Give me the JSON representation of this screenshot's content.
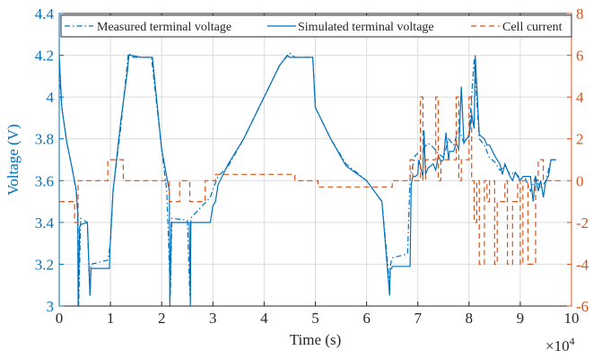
{
  "chart_data": {
    "type": "line",
    "xlabel": "Time (s)",
    "x_exponent_label": "×10",
    "x_exponent": "4",
    "ylabel_left": "Voltage (V)",
    "ylabel_right": "",
    "xlim": [
      0,
      10
    ],
    "ylim_left": [
      3,
      4.4
    ],
    "ylim_right": [
      -6,
      8
    ],
    "x_ticks": [
      0,
      1,
      2,
      3,
      4,
      5,
      6,
      7,
      8,
      9,
      10
    ],
    "y_left_ticks": [
      3,
      3.2,
      3.4,
      3.6,
      3.8,
      4,
      4.2,
      4.4
    ],
    "y_right_ticks": [
      -6,
      -4,
      -2,
      0,
      2,
      4,
      6,
      8
    ],
    "grid": true,
    "legend_location": "top",
    "colors": {
      "voltage": "#0072BD",
      "current": "#D95319"
    },
    "series": [
      {
        "name": "Measured terminal voltage",
        "axis": "left",
        "style": "dashdot",
        "color": "#0072BD",
        "x": [
          0,
          0.05,
          0.15,
          0.25,
          0.33,
          0.37,
          0.38,
          0.42,
          0.55,
          0.6,
          0.62,
          0.95,
          1.0,
          1.05,
          1.2,
          1.35,
          1.45,
          1.6,
          1.8,
          2.0,
          2.1,
          2.17,
          2.2,
          2.5,
          2.55,
          2.57,
          2.6,
          2.95,
          3.0,
          3.1,
          3.3,
          3.6,
          4.0,
          4.3,
          4.5,
          4.6,
          4.95,
          5.0,
          5.3,
          5.6,
          6.0,
          6.3,
          6.45,
          6.47,
          6.5,
          6.8,
          6.85,
          6.95,
          7.05,
          7.1,
          7.2,
          7.3,
          7.4,
          7.5,
          7.6,
          7.7,
          7.8,
          7.9,
          8.0,
          8.1,
          8.2,
          8.3,
          8.4,
          8.5,
          8.6,
          8.7,
          8.8,
          8.9,
          9.0,
          9.1,
          9.2,
          9.3,
          9.4,
          9.5,
          9.6,
          9.7
        ],
        "y": [
          4.12,
          3.95,
          3.78,
          3.66,
          3.55,
          3.4,
          3.0,
          3.42,
          3.4,
          3.05,
          3.2,
          3.22,
          3.3,
          3.55,
          3.85,
          4.21,
          4.19,
          4.19,
          4.19,
          3.75,
          3.55,
          3.05,
          3.42,
          3.41,
          3.05,
          3.42,
          3.43,
          3.52,
          3.56,
          3.62,
          3.67,
          3.8,
          4.0,
          4.15,
          4.21,
          4.19,
          4.19,
          3.95,
          3.8,
          3.68,
          3.6,
          3.5,
          3.1,
          3.2,
          3.23,
          3.25,
          3.62,
          3.72,
          3.74,
          3.75,
          3.78,
          3.76,
          3.73,
          3.71,
          3.8,
          3.77,
          3.85,
          3.78,
          3.82,
          4.18,
          3.8,
          3.77,
          3.71,
          3.69,
          3.65,
          3.67,
          3.63,
          3.64,
          3.61,
          3.61,
          3.55,
          3.62,
          3.56,
          3.6,
          3.7,
          3.7
        ]
      },
      {
        "name": "Simulated terminal voltage",
        "axis": "left",
        "style": "solid",
        "color": "#0072BD",
        "x": [
          0,
          0.05,
          0.15,
          0.25,
          0.33,
          0.36,
          0.37,
          0.4,
          0.42,
          0.55,
          0.6,
          0.62,
          0.98,
          0.99,
          1.05,
          1.2,
          1.33,
          1.36,
          1.4,
          1.6,
          1.8,
          1.82,
          2.0,
          2.15,
          2.16,
          2.19,
          2.2,
          2.5,
          2.54,
          2.56,
          2.57,
          2.6,
          2.95,
          3.0,
          3.05,
          3.1,
          3.3,
          3.6,
          4.0,
          4.3,
          4.45,
          4.5,
          4.6,
          4.9,
          4.95,
          5.0,
          5.3,
          5.6,
          6.0,
          6.3,
          6.45,
          6.46,
          6.49,
          6.5,
          6.85,
          6.87,
          6.9,
          6.95,
          7.0,
          7.02,
          7.1,
          7.12,
          7.15,
          7.2,
          7.3,
          7.35,
          7.4,
          7.45,
          7.5,
          7.55,
          7.6,
          7.62,
          7.7,
          7.75,
          7.8,
          7.85,
          7.9,
          7.95,
          8.0,
          8.05,
          8.1,
          8.12,
          8.2,
          8.3,
          8.35,
          8.4,
          8.5,
          8.6,
          8.65,
          8.7,
          8.8,
          8.85,
          8.9,
          9.0,
          9.05,
          9.1,
          9.2,
          9.25,
          9.3,
          9.35,
          9.4,
          9.45,
          9.5,
          9.55,
          9.6,
          9.7
        ],
        "y": [
          4.2,
          3.95,
          3.78,
          3.66,
          3.56,
          3.45,
          3.0,
          3.38,
          3.39,
          3.4,
          3.05,
          3.18,
          3.18,
          3.27,
          3.55,
          3.88,
          4.12,
          4.2,
          4.2,
          4.19,
          4.19,
          4.19,
          3.75,
          3.55,
          3.0,
          3.4,
          3.4,
          3.4,
          3.4,
          3.0,
          3.4,
          3.4,
          3.4,
          3.48,
          3.5,
          3.58,
          3.68,
          3.8,
          4.0,
          4.15,
          4.2,
          4.19,
          4.19,
          4.19,
          4.19,
          3.95,
          3.8,
          3.67,
          3.6,
          3.5,
          3.05,
          3.18,
          3.18,
          3.19,
          3.19,
          3.58,
          3.62,
          3.62,
          3.63,
          3.7,
          3.62,
          3.84,
          3.63,
          3.66,
          3.68,
          3.65,
          3.72,
          3.69,
          3.7,
          3.83,
          3.7,
          3.74,
          3.74,
          3.78,
          3.75,
          4.05,
          3.78,
          3.8,
          3.81,
          3.92,
          3.85,
          4.2,
          3.82,
          3.8,
          3.77,
          3.77,
          3.72,
          3.68,
          3.63,
          3.68,
          3.62,
          3.6,
          3.64,
          3.6,
          3.62,
          3.62,
          3.62,
          3.5,
          3.62,
          3.55,
          3.6,
          3.52,
          3.6,
          3.62,
          3.7,
          3.7
        ]
      },
      {
        "name": "Cell current",
        "axis": "right",
        "style": "dashed",
        "color": "#D95319",
        "x": [
          0,
          0.3,
          0.3,
          0.37,
          0.37,
          0.95,
          0.95,
          1.25,
          1.25,
          1.35,
          1.35,
          1.82,
          1.82,
          2.15,
          2.15,
          2.35,
          2.35,
          2.55,
          2.55,
          2.85,
          2.85,
          2.95,
          2.95,
          3.05,
          3.05,
          4.6,
          4.6,
          4.9,
          4.9,
          5.05,
          5.05,
          6.5,
          6.5,
          6.85,
          6.85,
          6.9,
          6.9,
          6.95,
          6.95,
          7.05,
          7.05,
          7.1,
          7.1,
          7.15,
          7.15,
          7.35,
          7.35,
          7.4,
          7.4,
          7.45,
          7.45,
          7.75,
          7.75,
          7.8,
          7.8,
          7.85,
          7.85,
          8.0,
          8.0,
          8.05,
          8.05,
          8.1,
          8.1,
          8.15,
          8.15,
          8.2,
          8.2,
          8.3,
          8.3,
          8.35,
          8.35,
          8.4,
          8.4,
          8.5,
          8.5,
          8.55,
          8.55,
          8.7,
          8.7,
          8.75,
          8.75,
          8.85,
          8.85,
          8.95,
          8.95,
          9.0,
          9.0,
          9.05,
          9.05,
          9.15,
          9.15,
          9.3,
          9.3,
          9.35,
          9.35,
          9.45,
          9.45,
          9.5,
          9.5,
          9.8
        ],
        "y": [
          -1,
          -1,
          -2,
          -2,
          0,
          0,
          1,
          1,
          0,
          0,
          0,
          0,
          0,
          0,
          -1,
          -1,
          0,
          0,
          -1,
          -1,
          0,
          0,
          0,
          0,
          0.3,
          0.3,
          0,
          0,
          0,
          0,
          -0.3,
          -0.3,
          0,
          0,
          1,
          1,
          0,
          0,
          0,
          0,
          4,
          4,
          0,
          0,
          1,
          1,
          4,
          4,
          0,
          0,
          1,
          1,
          4,
          4,
          0,
          0,
          1,
          1,
          4,
          4,
          0,
          0,
          -2,
          -2,
          0,
          0,
          -4,
          -4,
          0,
          0,
          -1,
          -1,
          0,
          0,
          -4,
          -4,
          -1,
          -1,
          0,
          0,
          -4,
          -4,
          -1,
          -1,
          0,
          0,
          -4,
          -4,
          0,
          0,
          -4,
          -4,
          0,
          0,
          1,
          1,
          0,
          0,
          0,
          0
        ]
      }
    ]
  }
}
